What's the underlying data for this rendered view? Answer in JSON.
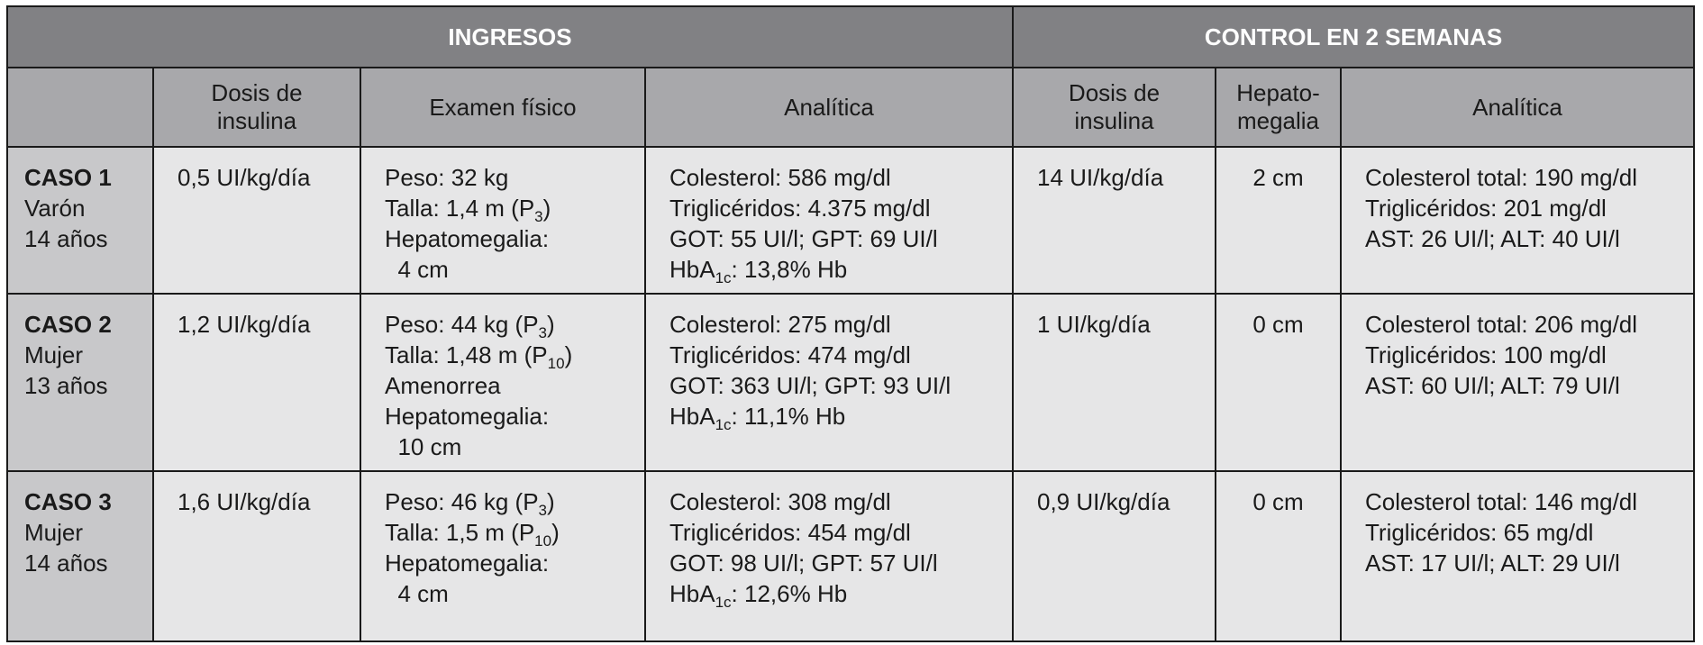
{
  "table": {
    "groups": [
      "INGRESOS",
      "CONTROL EN 2 SEMANAS"
    ],
    "columns": [
      [
        "Dosis de",
        "insulina"
      ],
      [
        "Examen físico"
      ],
      [
        "Analítica"
      ],
      [
        "Dosis de",
        "insulina"
      ],
      [
        "Hepato-",
        "megalia"
      ],
      [
        "Analítica"
      ]
    ],
    "rows": [
      {
        "case": [
          "CASO 1",
          "Varón",
          "14 años"
        ],
        "cells": [
          [
            [
              "0,5 UI/kg/día"
            ]
          ],
          [
            [
              "Peso: 32 kg"
            ],
            [
              "Talla: 1,4 m (P",
              {
                "sub": "3"
              },
              ")"
            ],
            [
              "Hepatomegalia:"
            ],
            [
              "  4 cm"
            ]
          ],
          [
            [
              "Colesterol: 586 mg/dl"
            ],
            [
              "Triglicéridos: 4.375 mg/dl"
            ],
            [
              "GOT: 55 UI/l; GPT: 69 UI/l"
            ],
            [
              "HbA",
              {
                "sub": "1c"
              },
              ": 13,8% Hb"
            ]
          ],
          [
            [
              "14 UI/kg/día"
            ]
          ],
          [
            [
              "2 cm"
            ]
          ],
          [
            [
              "Colesterol total: 190 mg/dl"
            ],
            [
              "Triglicéridos: 201 mg/dl"
            ],
            [
              "AST: 26 UI/l; ALT: 40 UI/l"
            ]
          ]
        ]
      },
      {
        "case": [
          "CASO 2",
          "Mujer",
          "13 años"
        ],
        "cells": [
          [
            [
              "1,2 UI/kg/día"
            ]
          ],
          [
            [
              "Peso: 44 kg (P",
              {
                "sub": "3"
              },
              ")"
            ],
            [
              "Talla: 1,48 m (P",
              {
                "sub": "10"
              },
              ")"
            ],
            [
              "Amenorrea"
            ],
            [
              "Hepatomegalia:"
            ],
            [
              "  10 cm"
            ]
          ],
          [
            [
              "Colesterol: 275 mg/dl"
            ],
            [
              "Triglicéridos: 474 mg/dl"
            ],
            [
              "GOT: 363 UI/l; GPT: 93 UI/l"
            ],
            [
              "HbA",
              {
                "sub": "1c"
              },
              ": 11,1% Hb"
            ]
          ],
          [
            [
              "1 UI/kg/día"
            ]
          ],
          [
            [
              "0 cm"
            ]
          ],
          [
            [
              "Colesterol total: 206 mg/dl"
            ],
            [
              "Triglicéridos: 100 mg/dl"
            ],
            [
              "AST: 60 UI/l; ALT: 79 UI/l"
            ]
          ]
        ]
      },
      {
        "case": [
          "CASO 3",
          "Mujer",
          "14 años"
        ],
        "cells": [
          [
            [
              "1,6 UI/kg/día"
            ]
          ],
          [
            [
              "Peso: 46 kg (P",
              {
                "sub": "3"
              },
              ")"
            ],
            [
              "Talla: 1,5 m (P",
              {
                "sub": "10"
              },
              ")"
            ],
            [
              "Hepatomegalia:"
            ],
            [
              "  4 cm"
            ]
          ],
          [
            [
              "Colesterol: 308 mg/dl"
            ],
            [
              "Triglicéridos: 454 mg/dl"
            ],
            [
              "GOT: 98 UI/l; GPT: 57 UI/l"
            ],
            [
              "HbA",
              {
                "sub": "1c"
              },
              ": 12,6% Hb"
            ]
          ],
          [
            [
              "0,9 UI/kg/día"
            ]
          ],
          [
            [
              "0 cm"
            ]
          ],
          [
            [
              "Colesterol total: 146 mg/dl"
            ],
            [
              "Triglicéridos: 65 mg/dl"
            ],
            [
              "AST: 17 UI/l; ALT: 29 UI/l"
            ]
          ]
        ]
      }
    ]
  }
}
